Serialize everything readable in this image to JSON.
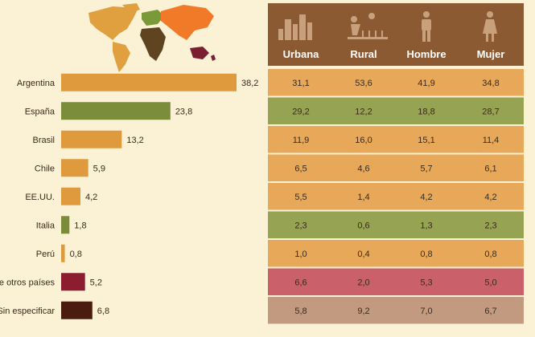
{
  "colors": {
    "background": "#fbf1d4",
    "header": "#8b5a33",
    "map_americas": "#e0a040",
    "map_europe_asia": "#f07a28",
    "map_africa": "#5e4420",
    "map_europe": "#7a9a3a",
    "map_oceania": "#7a1e32"
  },
  "chart_data": [
    {
      "type": "bar",
      "orientation": "horizontal",
      "categories": [
        "Argentina",
        "España",
        "Brasil",
        "Chile",
        "EE.UU.",
        "Italia",
        "Perú",
        "to de otros países",
        "Sin especificar"
      ],
      "values": [
        38.2,
        23.8,
        13.2,
        5.9,
        4.2,
        1.8,
        0.8,
        5.2,
        6.8
      ],
      "value_labels": [
        "38,2",
        "23,8",
        "13,2",
        "5,9",
        "4,2",
        "1,8",
        "0,8",
        "5,2",
        "6,8"
      ],
      "bar_colors": [
        "#e09a3e",
        "#7b8d3a",
        "#e09a3e",
        "#e09a3e",
        "#e09a3e",
        "#7b8d3a",
        "#e09a3e",
        "#8c1c30",
        "#4a1c10"
      ],
      "xlim": [
        0,
        38.2
      ],
      "grid": false
    },
    {
      "type": "table",
      "columns": [
        {
          "label": "Urbana",
          "icon": "city-icon"
        },
        {
          "label": "Rural",
          "icon": "farm-icon"
        },
        {
          "label": "Hombre",
          "icon": "man-icon"
        },
        {
          "label": "Mujer",
          "icon": "woman-icon"
        }
      ],
      "rows": [
        {
          "values": [
            "31,1",
            "53,6",
            "41,9",
            "34,8"
          ],
          "color": "#e7a85a"
        },
        {
          "values": [
            "29,2",
            "12,2",
            "18,8",
            "28,7"
          ],
          "color": "#95a352"
        },
        {
          "values": [
            "11,9",
            "16,0",
            "15,1",
            "11,4"
          ],
          "color": "#e7a85a"
        },
        {
          "values": [
            "6,5",
            "4,6",
            "5,7",
            "6,1"
          ],
          "color": "#e7a85a"
        },
        {
          "values": [
            "5,5",
            "1,4",
            "4,2",
            "4,2"
          ],
          "color": "#e7a85a"
        },
        {
          "values": [
            "2,3",
            "0,6",
            "1,3",
            "2,3"
          ],
          "color": "#95a352"
        },
        {
          "values": [
            "1,0",
            "0,4",
            "0,8",
            "0,8"
          ],
          "color": "#e7a85a"
        },
        {
          "values": [
            "6,6",
            "2,0",
            "5,3",
            "5,0"
          ],
          "color": "#c9606a"
        },
        {
          "values": [
            "5,8",
            "9,2",
            "7,0",
            "6,7"
          ],
          "color": "#c29a80"
        }
      ]
    }
  ]
}
